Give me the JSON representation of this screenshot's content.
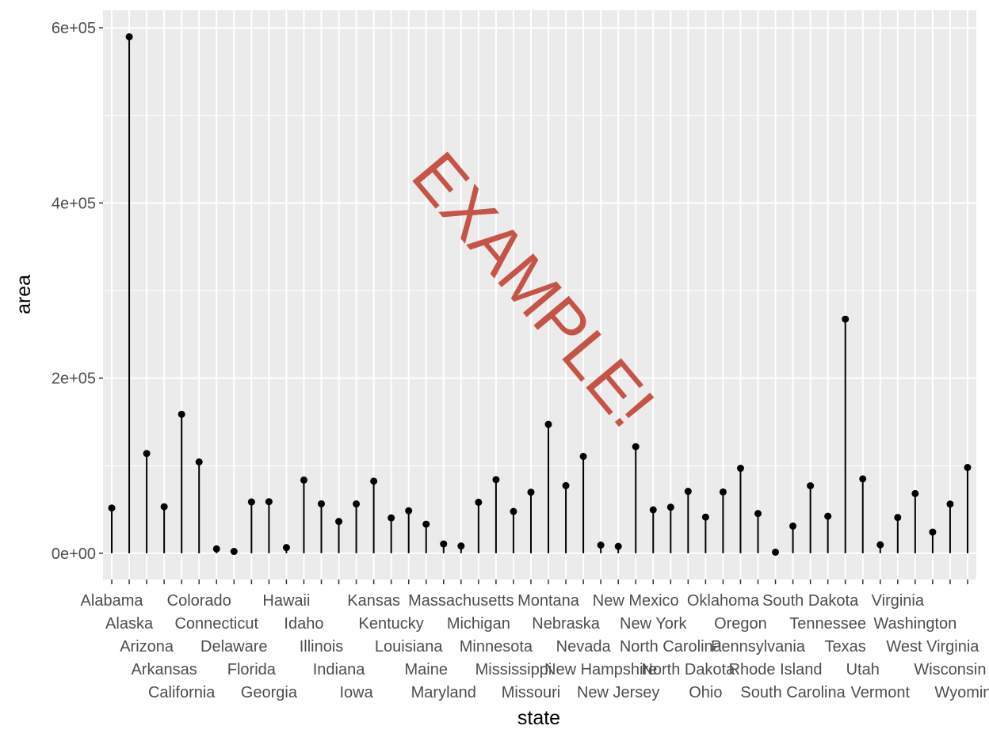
{
  "chart_data": {
    "type": "lollipop",
    "title": "",
    "xlabel": "state",
    "ylabel": "area",
    "ylim": [
      -30000,
      620000
    ],
    "y_ticks": [
      0,
      200000,
      400000,
      600000
    ],
    "y_tick_labels": [
      "0e+00",
      "2e+05",
      "4e+05",
      "6e+05"
    ],
    "categories": [
      "Alabama",
      "Alaska",
      "Arizona",
      "Arkansas",
      "California",
      "Colorado",
      "Connecticut",
      "Delaware",
      "Florida",
      "Georgia",
      "Hawaii",
      "Idaho",
      "Illinois",
      "Indiana",
      "Iowa",
      "Kansas",
      "Kentucky",
      "Louisiana",
      "Maine",
      "Maryland",
      "Massachusetts",
      "Michigan",
      "Minnesota",
      "Mississippi",
      "Missouri",
      "Montana",
      "Nebraska",
      "Nevada",
      "New Hampshire",
      "New Jersey",
      "New Mexico",
      "New York",
      "North Carolina",
      "North Dakota",
      "Ohio",
      "Oklahoma",
      "Oregon",
      "Pennsylvania",
      "Rhode Island",
      "South Carolina",
      "South Dakota",
      "Tennessee",
      "Texas",
      "Utah",
      "Vermont",
      "Virginia",
      "Washington",
      "West Virginia",
      "Wisconsin",
      "Wyoming"
    ],
    "values": [
      51609,
      589757,
      113909,
      53104,
      158693,
      104247,
      5009,
      2057,
      58560,
      58876,
      6450,
      83557,
      56400,
      36291,
      56290,
      82264,
      40395,
      48523,
      33215,
      10577,
      8257,
      58216,
      84068,
      47716,
      69686,
      147138,
      77227,
      110540,
      9304,
      7836,
      121666,
      49576,
      52586,
      70665,
      41222,
      69919,
      96981,
      45333,
      1214,
      31055,
      77047,
      42244,
      267339,
      84916,
      9609,
      40815,
      68192,
      24181,
      56154,
      97914
    ],
    "grid": true,
    "watermark": "EXAMPLE!"
  }
}
